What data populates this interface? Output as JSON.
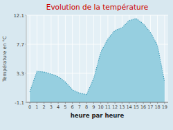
{
  "chart_data": {
    "type": "area",
    "title": "Evolution de la température",
    "x_label": "heure par heure",
    "y_label": "Température en °C",
    "x": [
      0,
      1,
      2,
      3,
      4,
      5,
      6,
      7,
      8,
      9,
      10,
      11,
      12,
      13,
      14,
      15,
      16,
      17,
      18,
      19
    ],
    "values": [
      0.5,
      3.6,
      3.5,
      3.2,
      2.8,
      2.0,
      0.8,
      0.3,
      0.1,
      2.5,
      6.5,
      8.5,
      9.8,
      10.2,
      11.3,
      11.6,
      10.8,
      9.5,
      7.5,
      2.0
    ],
    "xlim": [
      -0.5,
      19.5
    ],
    "ylim": [
      -1.1,
      12.1
    ],
    "xticks": [
      0,
      1,
      2,
      3,
      4,
      5,
      6,
      7,
      8,
      9,
      10,
      11,
      12,
      13,
      14,
      15,
      16,
      17,
      18,
      19
    ],
    "yticks": [
      -1.1,
      3.3,
      7.7,
      12.1
    ],
    "color": "#96cfe0",
    "line_style": "dotted",
    "grid": true
  }
}
